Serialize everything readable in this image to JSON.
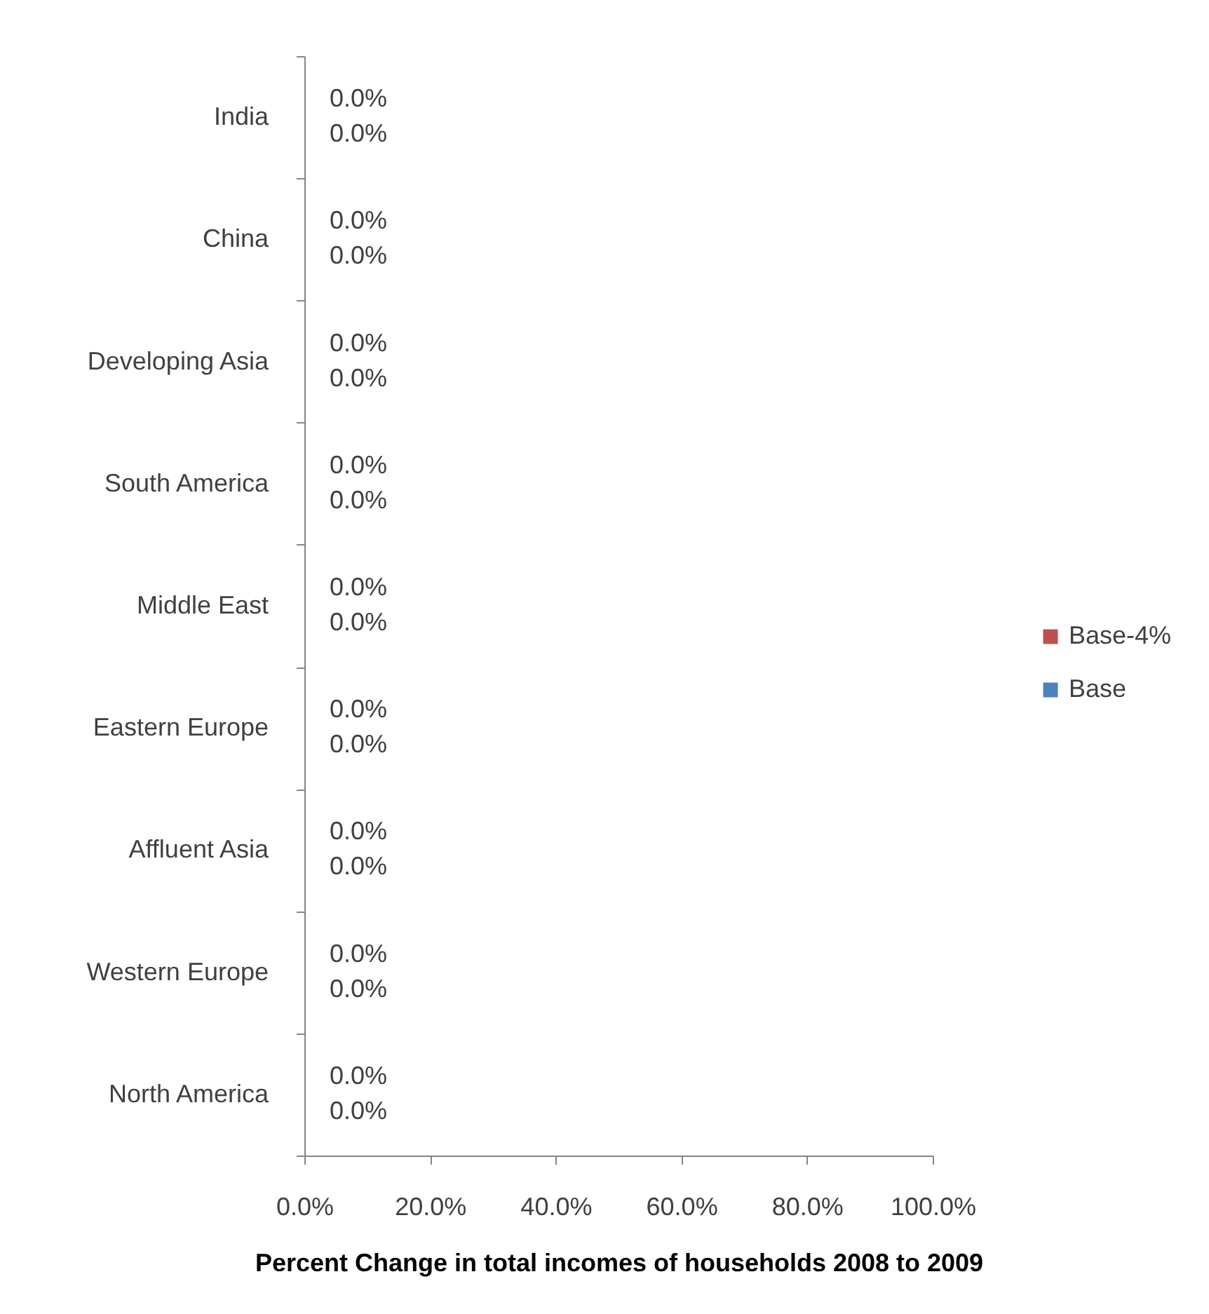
{
  "chart_data": {
    "type": "bar",
    "orientation": "horizontal",
    "categories": [
      "India",
      "China",
      "Developing Asia",
      "South America",
      "Middle East",
      "Eastern Europe",
      "Affluent Asia",
      "Western Europe",
      "North America"
    ],
    "series": [
      {
        "name": "Base-4%",
        "color": "#c0504d",
        "values": [
          0,
          0,
          0,
          0,
          0,
          0,
          0,
          0,
          0
        ],
        "value_labels": [
          "0.0%",
          "0.0%",
          "0.0%",
          "0.0%",
          "0.0%",
          "0.0%",
          "0.0%",
          "0.0%",
          "0.0%"
        ]
      },
      {
        "name": "Base",
        "color": "#4f81bd",
        "values": [
          0,
          0,
          0,
          0,
          0,
          0,
          0,
          0,
          0
        ],
        "value_labels": [
          "0.0%",
          "0.0%",
          "0.0%",
          "0.0%",
          "0.0%",
          "0.0%",
          "0.0%",
          "0.0%",
          "0.0%"
        ]
      }
    ],
    "xlabel": "Percent Change in total incomes of households 2008 to 2009",
    "xlim": [
      0,
      100
    ],
    "xticks": [
      {
        "value": 0,
        "label": "0.0%"
      },
      {
        "value": 20,
        "label": "20.0%"
      },
      {
        "value": 40,
        "label": "40.0%"
      },
      {
        "value": 60,
        "label": "60.0%"
      },
      {
        "value": 80,
        "label": "80.0%"
      },
      {
        "value": 100,
        "label": "100.0%"
      }
    ],
    "grid": false,
    "legend": "right"
  }
}
